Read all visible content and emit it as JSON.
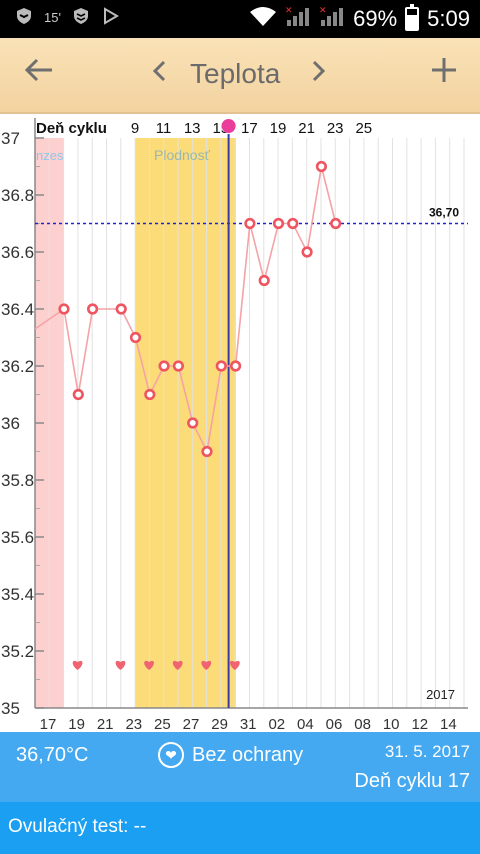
{
  "status_bar": {
    "notification_text": "15'",
    "battery_percent": "69%",
    "battery_level": 0.69,
    "time": "5:09"
  },
  "app_bar": {
    "title": "Teplota",
    "back_icon": "arrow-left-icon",
    "prev_icon": "chevron-left-icon",
    "next_icon": "chevron-right-icon",
    "add_icon": "plus-icon"
  },
  "chart_data": {
    "type": "line",
    "cycle_label": "Deň cyklu",
    "cycle_ticks": [
      "9",
      "11",
      "13",
      "15",
      "17",
      "19",
      "21",
      "23",
      "25"
    ],
    "date_ticks": [
      "17",
      "19",
      "21",
      "23",
      "25",
      "27",
      "29",
      "31",
      "02",
      "04",
      "06",
      "08",
      "10",
      "12",
      "14"
    ],
    "y_ticks": [
      "37",
      "36.8",
      "36.6",
      "36.4",
      "36.2",
      "36",
      "35.8",
      "35.6",
      "35.4",
      "35.2",
      "35"
    ],
    "ylim": [
      35,
      37
    ],
    "menses_label": "nzes",
    "fertile_label": "Plodnosť",
    "year_label": "2017",
    "reference_value": 36.7,
    "reference_label": "36,70",
    "selected_day_index": 12,
    "start_value": 36.33,
    "values": [
      36.4,
      36.1,
      36.4,
      null,
      36.4,
      36.3,
      36.1,
      36.2,
      36.2,
      36.0,
      35.9,
      36.2,
      36.2,
      36.7,
      36.5,
      36.7,
      36.7,
      36.6,
      36.9,
      36.7
    ],
    "heart_day_indices": [
      2,
      5,
      7,
      9,
      11,
      13
    ],
    "colors": {
      "menses": "#fdd0d0",
      "fertile": "#fbdc78",
      "line": "#f4a3a6",
      "point": "#ee5560",
      "heart": "#ef6470",
      "reference": "#1e22d6",
      "selected": "#3a3aa8",
      "selected_dot": "#ea3c9a"
    }
  },
  "info_bar": {
    "temperature": "36,70°C",
    "protection": "Bez ochrany",
    "date": "31. 5. 2017",
    "cycle_day": "Deň cyklu 17"
  },
  "ovulation": {
    "label": "Ovulačný test: --"
  }
}
